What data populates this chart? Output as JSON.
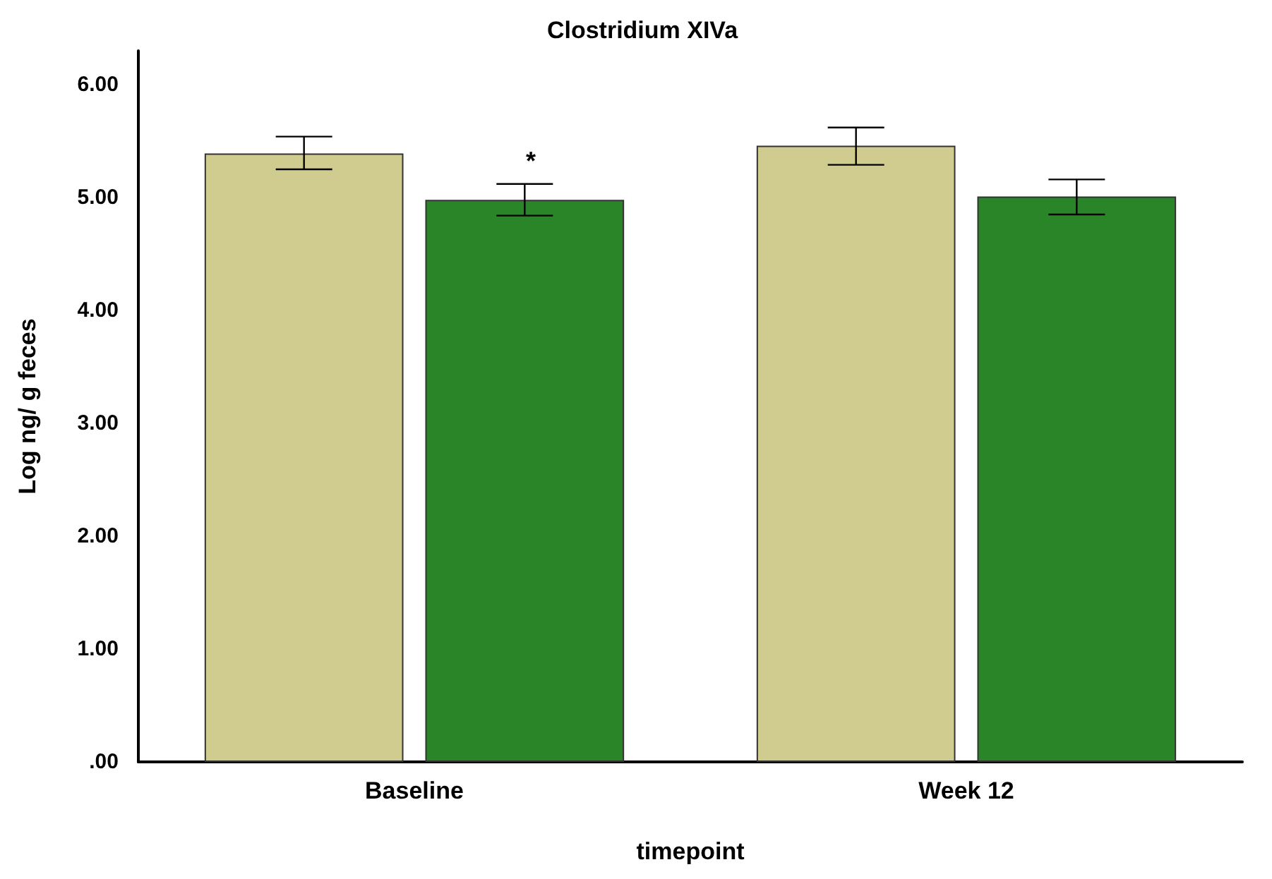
{
  "chart_data": {
    "type": "bar",
    "title": "Clostridium XIVa",
    "xlabel": "timepoint",
    "ylabel": "Log ng/ g feces",
    "categories": [
      "Baseline",
      "Week 12"
    ],
    "series": [
      {
        "color": "#d0cb8f",
        "values": [
          5.39,
          5.46
        ],
        "errors": [
          [
            5.25,
            5.54
          ],
          [
            5.29,
            5.62
          ]
        ]
      },
      {
        "color": "#2a8529",
        "values": [
          4.98,
          5.01
        ],
        "errors": [
          [
            4.84,
            5.12
          ],
          [
            4.85,
            5.16
          ]
        ]
      }
    ],
    "ylim": [
      0,
      6.3
    ],
    "yticks": [
      {
        "value": 0,
        "label": ".00"
      },
      {
        "value": 1,
        "label": "1.00"
      },
      {
        "value": 2,
        "label": "2.00"
      },
      {
        "value": 3,
        "label": "3.00"
      },
      {
        "value": 4,
        "label": "4.00"
      },
      {
        "value": 5,
        "label": "5.00"
      },
      {
        "value": 6,
        "label": "6.00"
      }
    ],
    "annotations": [
      "*"
    ],
    "grid": false
  }
}
